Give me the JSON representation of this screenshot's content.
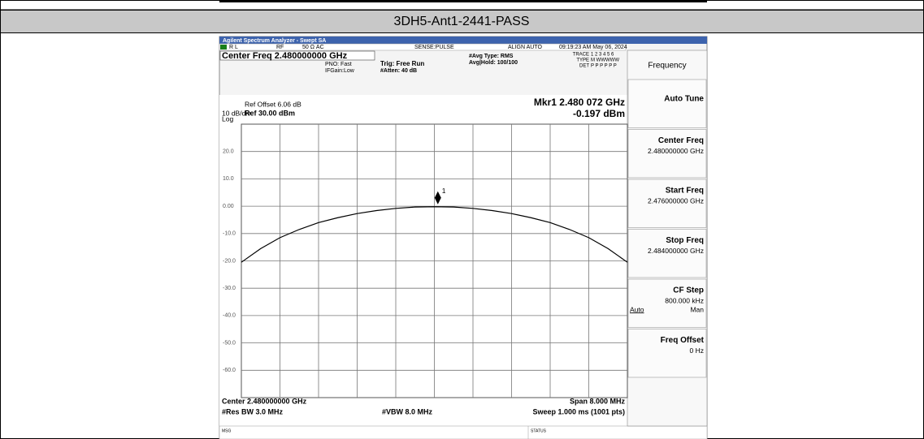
{
  "header": {
    "title": "3DH5-Ant1-2441-PASS"
  },
  "analyzer": {
    "window_title": "Agilent Spectrum Analyzer - Swept SA",
    "status": {
      "rl": "R L",
      "rf": "RF",
      "coupling": "50 Ω  AC",
      "sense": "SENSE:PULSE",
      "align": "ALIGN AUTO",
      "time": "09:19:23 AM May 06, 2024"
    },
    "center_freq_title": "Center Freq 2.480000000 GHz",
    "pno": "PNO: Fast",
    "ifgain": "IFGain:Low",
    "trig": "Trig: Free Run",
    "atten": "#Atten: 40 dB",
    "avg_type": "#Avg Type: RMS",
    "avg_hold": "Avg|Hold: 100/100",
    "trace": {
      "label": "TRACE",
      "value": "1 2 3 4 5 6"
    },
    "type": {
      "label": "TYPE",
      "value": "M WWWWW"
    },
    "det": {
      "label": "DET",
      "value": "P P P P P P"
    },
    "ref_offset": "Ref Offset 6.06 dB",
    "scale": "10 dB/div",
    "ref_level": "Ref 30.00 dBm",
    "log": "Log",
    "marker_freq": "Mkr1 2.480 072 GHz",
    "marker_level": "-0.197 dBm",
    "center_readout": "Center 2.480000000 GHz",
    "span_readout": "Span 8.000 MHz",
    "rbw": "#Res BW 3.0 MHz",
    "vbw": "#VBW 8.0 MHz",
    "sweep": "Sweep  1.000 ms (1001 pts)",
    "msg": "MSG",
    "status_label": "STATUS"
  },
  "softkeys": {
    "menu": "Frequency",
    "keys": [
      {
        "label": "Auto Tune"
      },
      {
        "label": "Center Freq",
        "value": "2.480000000 GHz"
      },
      {
        "label": "Start Freq",
        "value": "2.476000000 GHz"
      },
      {
        "label": "Stop Freq",
        "value": "2.484000000 GHz"
      },
      {
        "label": "CF Step",
        "value": "800.000 kHz",
        "options": [
          "Auto",
          "Man"
        ]
      },
      {
        "label": "Freq Offset",
        "value": "0 Hz"
      }
    ]
  },
  "chart_data": {
    "type": "line",
    "x": [
      2.476,
      2.4764,
      2.4768,
      2.4772,
      2.4776,
      2.478,
      2.4784,
      2.4788,
      2.4792,
      2.4796,
      2.48,
      2.4804,
      2.4808,
      2.4812,
      2.4816,
      2.482,
      2.4824,
      2.4828,
      2.4832,
      2.4836,
      2.484
    ],
    "series": [
      {
        "color": "#000000",
        "values": [
          -20.5,
          -15.5,
          -11.5,
          -8.5,
          -6.0,
          -4.2,
          -2.7,
          -1.6,
          -0.8,
          -0.3,
          -0.2,
          -0.3,
          -0.8,
          -1.6,
          -2.7,
          -4.2,
          -6.0,
          -8.5,
          -11.5,
          -15.5,
          -20.5
        ]
      }
    ],
    "xlim": [
      2.476,
      2.484
    ],
    "ylim": [
      -70,
      30
    ],
    "yticks": [
      {
        "value": 20,
        "label": "20.0"
      },
      {
        "value": 10,
        "label": "10.0"
      },
      {
        "value": 0,
        "label": "0.00"
      },
      {
        "value": -10,
        "label": "-10.0"
      },
      {
        "value": -20,
        "label": "-20.0"
      },
      {
        "value": -30,
        "label": "-30.0"
      },
      {
        "value": -40,
        "label": "-40.0"
      },
      {
        "value": -50,
        "label": "-50.0"
      },
      {
        "value": -60,
        "label": "-60.0"
      }
    ],
    "grid": true,
    "marker": {
      "label": "1",
      "x": 2.480072,
      "y": -0.197
    }
  }
}
